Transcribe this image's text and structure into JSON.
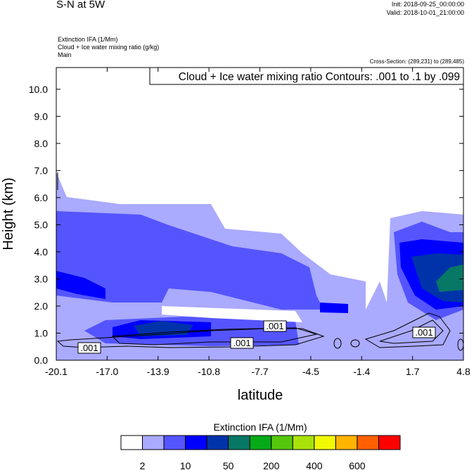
{
  "header": {
    "title": "S-N at 5W",
    "init": "Init: 2018-09-25_00:00:00",
    "valid": "Valid: 2018-10-01_21:00:00",
    "fields": [
      "Extinction IFA   (1/Mm)",
      "Cloud + Ice water mixing ratio   (g/kg)",
      "Main"
    ],
    "cross_section": "Cross-Section: (289,231) to (289,485)"
  },
  "chart_data": {
    "type": "heatmap",
    "title": "S-N at 5W",
    "xlabel": "latitude",
    "ylabel": "Height (km)",
    "xlim": [
      -20.1,
      4.8
    ],
    "ylim": [
      0,
      10.8
    ],
    "xticks": [
      "-20.1",
      "-17.0",
      "-13.9",
      "-10.8",
      "-7.7",
      "-4.5",
      "-1.4",
      "1.7",
      "4.8"
    ],
    "yticks": [
      "0.0",
      "1.0",
      "2.0",
      "3.0",
      "4.0",
      "5.0",
      "6.0",
      "7.0",
      "8.0",
      "9.0",
      "10.0"
    ],
    "contour_info": "Cloud + Ice water mixing ratio Contours: .001 to .1 by .099",
    "contour_labels": [
      ".001",
      ".001",
      ".001",
      ".001"
    ],
    "colorbar": {
      "title": "Extinction IFA  (1/Mm)",
      "labels": [
        "2",
        "10",
        "50",
        "200",
        "400",
        "600"
      ],
      "colors": [
        "#ffffff",
        "#aaaaff",
        "#5555ff",
        "#0000ff",
        "#0033aa",
        "#077766",
        "#06aa18",
        "#55c80e",
        "#a9e20b",
        "#f2f905",
        "#ffb500",
        "#ff6000",
        "#ff0000"
      ]
    }
  }
}
